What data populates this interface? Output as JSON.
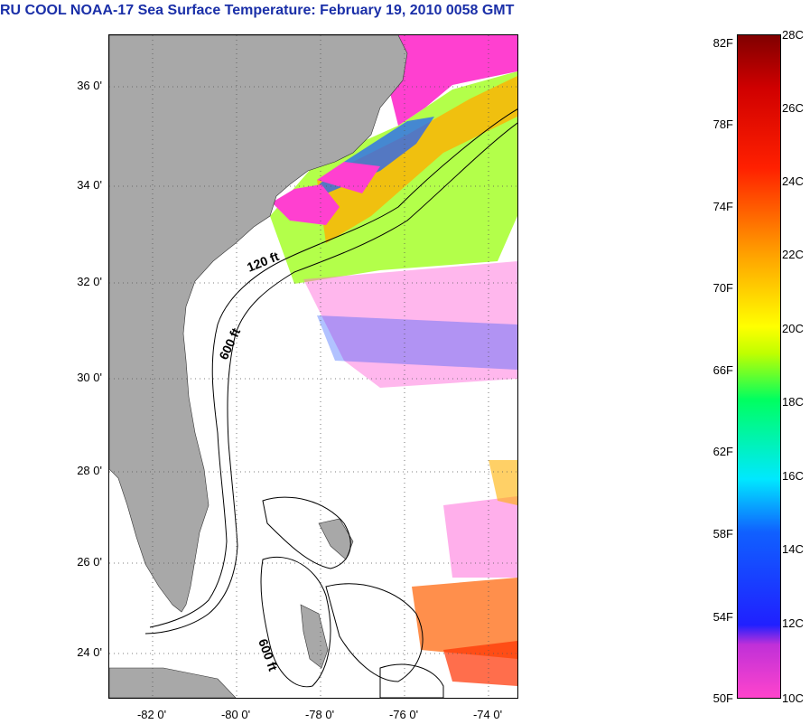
{
  "title": "RU COOL  NOAA-17  Sea Surface Temperature:  February 19, 2010 0058 GMT",
  "map": {
    "lat_labels": [
      "36 0'",
      "34 0'",
      "32 0'",
      "30 0'",
      "28 0'",
      "26 0'",
      "24 0'"
    ],
    "lon_labels": [
      "-82 0'",
      "-80 0'",
      "-78 0'",
      "-76 0'",
      "-74 0'"
    ],
    "contour_labels": [
      "120 ft",
      "600 ft",
      "600 ft"
    ],
    "colors": {
      "land": "#a8a8a8",
      "ocean_missing": "#ffffff",
      "grid": "#555555"
    }
  },
  "colorbar": {
    "fahrenheit_labels": [
      "82F",
      "78F",
      "74F",
      "70F",
      "66F",
      "62F",
      "58F",
      "54F",
      "50F"
    ],
    "celsius_labels": [
      "28C",
      "26C",
      "24C",
      "22C",
      "20C",
      "18C",
      "16C",
      "14C",
      "12C",
      "10C"
    ]
  }
}
